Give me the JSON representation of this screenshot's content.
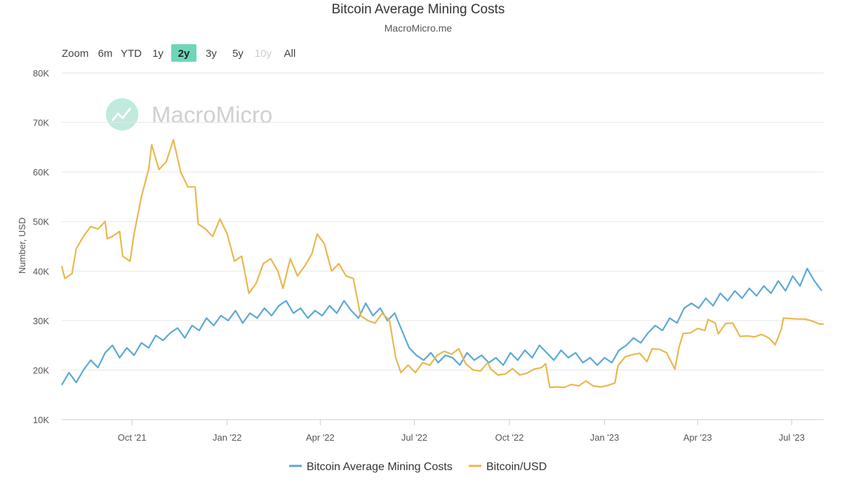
{
  "header": {
    "title": "Bitcoin Average Mining Costs",
    "subtitle": "MacroMicro.me",
    "watermark": "MacroMicro"
  },
  "range_selector": {
    "label": "Zoom",
    "buttons": [
      {
        "label": "6m",
        "state": "normal"
      },
      {
        "label": "YTD",
        "state": "normal"
      },
      {
        "label": "1y",
        "state": "normal"
      },
      {
        "label": "2y",
        "state": "active"
      },
      {
        "label": "3y",
        "state": "normal"
      },
      {
        "label": "5y",
        "state": "normal"
      },
      {
        "label": "10y",
        "state": "disabled"
      },
      {
        "label": "All",
        "state": "normal"
      }
    ],
    "active_color": "#6ed6b8"
  },
  "chart_data": {
    "type": "line",
    "ylabel": "Number, USD",
    "ylim": [
      10000,
      80000
    ],
    "yticks": [
      {
        "value": 10000,
        "label": "10K"
      },
      {
        "value": 20000,
        "label": "20K"
      },
      {
        "value": 30000,
        "label": "30K"
      },
      {
        "value": 40000,
        "label": "40K"
      },
      {
        "value": 50000,
        "label": "50K"
      },
      {
        "value": 60000,
        "label": "60K"
      },
      {
        "value": 70000,
        "label": "70K"
      },
      {
        "value": 80000,
        "label": "80K"
      }
    ],
    "xlim": [
      "2021-07-25",
      "2023-08-01"
    ],
    "xticks": [
      {
        "date": "2021-10-01",
        "label": "Oct '21"
      },
      {
        "date": "2022-01-01",
        "label": "Jan '22"
      },
      {
        "date": "2022-04-01",
        "label": "Apr '22"
      },
      {
        "date": "2022-07-01",
        "label": "Jul '22"
      },
      {
        "date": "2022-10-01",
        "label": "Oct '22"
      },
      {
        "date": "2023-01-01",
        "label": "Jan '23"
      },
      {
        "date": "2023-04-01",
        "label": "Apr '23"
      },
      {
        "date": "2023-07-01",
        "label": "Jul '23"
      }
    ],
    "grid": true,
    "legend_position": "bottom-center",
    "series": [
      {
        "name": "Bitcoin Average Mining Costs",
        "color": "#5aa9d6",
        "points": [
          [
            "2021-07-25",
            17000
          ],
          [
            "2021-08-01",
            19500
          ],
          [
            "2021-08-08",
            17500
          ],
          [
            "2021-08-15",
            20000
          ],
          [
            "2021-08-22",
            22000
          ],
          [
            "2021-08-29",
            20500
          ],
          [
            "2021-09-05",
            23500
          ],
          [
            "2021-09-12",
            25000
          ],
          [
            "2021-09-19",
            22500
          ],
          [
            "2021-09-26",
            24500
          ],
          [
            "2021-10-03",
            23000
          ],
          [
            "2021-10-10",
            25500
          ],
          [
            "2021-10-17",
            24500
          ],
          [
            "2021-10-24",
            27000
          ],
          [
            "2021-10-31",
            26000
          ],
          [
            "2021-11-07",
            27500
          ],
          [
            "2021-11-14",
            28500
          ],
          [
            "2021-11-21",
            26500
          ],
          [
            "2021-11-28",
            29000
          ],
          [
            "2021-12-05",
            28000
          ],
          [
            "2021-12-12",
            30500
          ],
          [
            "2021-12-19",
            29000
          ],
          [
            "2021-12-26",
            31000
          ],
          [
            "2022-01-02",
            30000
          ],
          [
            "2022-01-09",
            32000
          ],
          [
            "2022-01-16",
            29500
          ],
          [
            "2022-01-23",
            31500
          ],
          [
            "2022-01-30",
            30500
          ],
          [
            "2022-02-06",
            32500
          ],
          [
            "2022-02-13",
            31000
          ],
          [
            "2022-02-20",
            33000
          ],
          [
            "2022-02-27",
            34000
          ],
          [
            "2022-03-06",
            31500
          ],
          [
            "2022-03-13",
            32500
          ],
          [
            "2022-03-20",
            30500
          ],
          [
            "2022-03-27",
            32000
          ],
          [
            "2022-04-03",
            31000
          ],
          [
            "2022-04-10",
            33000
          ],
          [
            "2022-04-17",
            31500
          ],
          [
            "2022-04-24",
            34000
          ],
          [
            "2022-05-01",
            32000
          ],
          [
            "2022-05-08",
            30500
          ],
          [
            "2022-05-15",
            33500
          ],
          [
            "2022-05-22",
            31000
          ],
          [
            "2022-05-29",
            32500
          ],
          [
            "2022-06-05",
            30000
          ],
          [
            "2022-06-12",
            31500
          ],
          [
            "2022-06-19",
            28000
          ],
          [
            "2022-06-26",
            24500
          ],
          [
            "2022-07-03",
            23000
          ],
          [
            "2022-07-10",
            22000
          ],
          [
            "2022-07-17",
            23500
          ],
          [
            "2022-07-24",
            21500
          ],
          [
            "2022-07-31",
            23000
          ],
          [
            "2022-08-07",
            22500
          ],
          [
            "2022-08-14",
            21000
          ],
          [
            "2022-08-21",
            23500
          ],
          [
            "2022-08-28",
            22000
          ],
          [
            "2022-09-04",
            23000
          ],
          [
            "2022-09-11",
            21500
          ],
          [
            "2022-09-18",
            22500
          ],
          [
            "2022-09-25",
            21000
          ],
          [
            "2022-10-02",
            23500
          ],
          [
            "2022-10-09",
            22000
          ],
          [
            "2022-10-16",
            24000
          ],
          [
            "2022-10-23",
            22500
          ],
          [
            "2022-10-30",
            25000
          ],
          [
            "2022-11-06",
            23500
          ],
          [
            "2022-11-13",
            22000
          ],
          [
            "2022-11-20",
            24000
          ],
          [
            "2022-11-27",
            22500
          ],
          [
            "2022-12-04",
            23500
          ],
          [
            "2022-12-11",
            21500
          ],
          [
            "2022-12-18",
            22500
          ],
          [
            "2022-12-25",
            21000
          ],
          [
            "2023-01-01",
            22500
          ],
          [
            "2023-01-08",
            21500
          ],
          [
            "2023-01-15",
            24000
          ],
          [
            "2023-01-22",
            25000
          ],
          [
            "2023-01-29",
            26500
          ],
          [
            "2023-02-05",
            25500
          ],
          [
            "2023-02-12",
            27500
          ],
          [
            "2023-02-19",
            29000
          ],
          [
            "2023-02-26",
            28000
          ],
          [
            "2023-03-05",
            30500
          ],
          [
            "2023-03-12",
            29500
          ],
          [
            "2023-03-19",
            32500
          ],
          [
            "2023-03-26",
            33500
          ],
          [
            "2023-04-02",
            32500
          ],
          [
            "2023-04-09",
            34500
          ],
          [
            "2023-04-16",
            33000
          ],
          [
            "2023-04-23",
            35500
          ],
          [
            "2023-04-30",
            34000
          ],
          [
            "2023-05-07",
            36000
          ],
          [
            "2023-05-14",
            34500
          ],
          [
            "2023-05-21",
            36500
          ],
          [
            "2023-05-28",
            35000
          ],
          [
            "2023-06-04",
            37000
          ],
          [
            "2023-06-11",
            35500
          ],
          [
            "2023-06-18",
            38000
          ],
          [
            "2023-06-25",
            36000
          ],
          [
            "2023-07-02",
            39000
          ],
          [
            "2023-07-09",
            37000
          ],
          [
            "2023-07-16",
            40500
          ],
          [
            "2023-07-23",
            38000
          ],
          [
            "2023-07-30",
            36000
          ]
        ]
      },
      {
        "name": "Bitcoin/USD",
        "color": "#e8b84e",
        "points": [
          [
            "2021-07-25",
            41000
          ],
          [
            "2021-07-28",
            38500
          ],
          [
            "2021-08-04",
            39500
          ],
          [
            "2021-08-08",
            44500
          ],
          [
            "2021-08-15",
            47000
          ],
          [
            "2021-08-22",
            49000
          ],
          [
            "2021-08-29",
            48500
          ],
          [
            "2021-09-05",
            50000
          ],
          [
            "2021-09-07",
            46500
          ],
          [
            "2021-09-12",
            47000
          ],
          [
            "2021-09-19",
            48000
          ],
          [
            "2021-09-22",
            43000
          ],
          [
            "2021-09-29",
            42000
          ],
          [
            "2021-10-03",
            47500
          ],
          [
            "2021-10-10",
            55000
          ],
          [
            "2021-10-17",
            60500
          ],
          [
            "2021-10-20",
            65500
          ],
          [
            "2021-10-27",
            60500
          ],
          [
            "2021-11-03",
            62000
          ],
          [
            "2021-11-10",
            66500
          ],
          [
            "2021-11-17",
            60000
          ],
          [
            "2021-11-24",
            57000
          ],
          [
            "2021-12-01",
            57000
          ],
          [
            "2021-12-04",
            49500
          ],
          [
            "2021-12-11",
            48500
          ],
          [
            "2021-12-18",
            47000
          ],
          [
            "2021-12-25",
            50500
          ],
          [
            "2022-01-01",
            47500
          ],
          [
            "2022-01-08",
            42000
          ],
          [
            "2022-01-15",
            43000
          ],
          [
            "2022-01-22",
            35500
          ],
          [
            "2022-01-29",
            37500
          ],
          [
            "2022-02-05",
            41500
          ],
          [
            "2022-02-12",
            42500
          ],
          [
            "2022-02-19",
            40000
          ],
          [
            "2022-02-24",
            36500
          ],
          [
            "2022-03-03",
            42500
          ],
          [
            "2022-03-10",
            39000
          ],
          [
            "2022-03-17",
            41000
          ],
          [
            "2022-03-24",
            43500
          ],
          [
            "2022-03-29",
            47500
          ],
          [
            "2022-04-05",
            45500
          ],
          [
            "2022-04-12",
            40000
          ],
          [
            "2022-04-19",
            41500
          ],
          [
            "2022-04-26",
            39000
          ],
          [
            "2022-05-03",
            38500
          ],
          [
            "2022-05-10",
            31000
          ],
          [
            "2022-05-17",
            30000
          ],
          [
            "2022-05-24",
            29500
          ],
          [
            "2022-05-31",
            31500
          ],
          [
            "2022-06-07",
            30000
          ],
          [
            "2022-06-13",
            22500
          ],
          [
            "2022-06-18",
            19500
          ],
          [
            "2022-06-25",
            21000
          ],
          [
            "2022-07-02",
            19500
          ],
          [
            "2022-07-09",
            21500
          ],
          [
            "2022-07-16",
            21000
          ],
          [
            "2022-07-23",
            23000
          ],
          [
            "2022-07-30",
            23800
          ],
          [
            "2022-08-06",
            23200
          ],
          [
            "2022-08-13",
            24300
          ],
          [
            "2022-08-20",
            21200
          ],
          [
            "2022-08-27",
            20000
          ],
          [
            "2022-09-03",
            19800
          ],
          [
            "2022-09-10",
            21500
          ],
          [
            "2022-09-13",
            20200
          ],
          [
            "2022-09-20",
            19000
          ],
          [
            "2022-09-27",
            19200
          ],
          [
            "2022-10-04",
            20300
          ],
          [
            "2022-10-11",
            19000
          ],
          [
            "2022-10-18",
            19400
          ],
          [
            "2022-10-25",
            20200
          ],
          [
            "2022-11-01",
            20500
          ],
          [
            "2022-11-05",
            21300
          ],
          [
            "2022-11-09",
            16500
          ],
          [
            "2022-11-16",
            16600
          ],
          [
            "2022-11-23",
            16500
          ],
          [
            "2022-11-30",
            17100
          ],
          [
            "2022-12-07",
            16800
          ],
          [
            "2022-12-14",
            17800
          ],
          [
            "2022-12-21",
            16800
          ],
          [
            "2022-12-28",
            16600
          ],
          [
            "2023-01-04",
            16900
          ],
          [
            "2023-01-11",
            17400
          ],
          [
            "2023-01-14",
            20900
          ],
          [
            "2023-01-21",
            22700
          ],
          [
            "2023-01-28",
            23100
          ],
          [
            "2023-02-04",
            23400
          ],
          [
            "2023-02-11",
            21700
          ],
          [
            "2023-02-16",
            24300
          ],
          [
            "2023-02-23",
            24200
          ],
          [
            "2023-03-02",
            23500
          ],
          [
            "2023-03-10",
            20200
          ],
          [
            "2023-03-14",
            24600
          ],
          [
            "2023-03-18",
            27400
          ],
          [
            "2023-03-25",
            27500
          ],
          [
            "2023-04-01",
            28400
          ],
          [
            "2023-04-08",
            28000
          ],
          [
            "2023-04-11",
            30200
          ],
          [
            "2023-04-18",
            29500
          ],
          [
            "2023-04-21",
            27300
          ],
          [
            "2023-04-28",
            29400
          ],
          [
            "2023-05-05",
            29500
          ],
          [
            "2023-05-12",
            26800
          ],
          [
            "2023-05-19",
            26900
          ],
          [
            "2023-05-26",
            26700
          ],
          [
            "2023-06-02",
            27200
          ],
          [
            "2023-06-09",
            26500
          ],
          [
            "2023-06-15",
            25100
          ],
          [
            "2023-06-21",
            28300
          ],
          [
            "2023-06-23",
            30500
          ],
          [
            "2023-06-30",
            30400
          ],
          [
            "2023-07-07",
            30300
          ],
          [
            "2023-07-14",
            30300
          ],
          [
            "2023-07-21",
            29900
          ],
          [
            "2023-07-28",
            29300
          ],
          [
            "2023-08-01",
            29300
          ]
        ]
      }
    ]
  }
}
